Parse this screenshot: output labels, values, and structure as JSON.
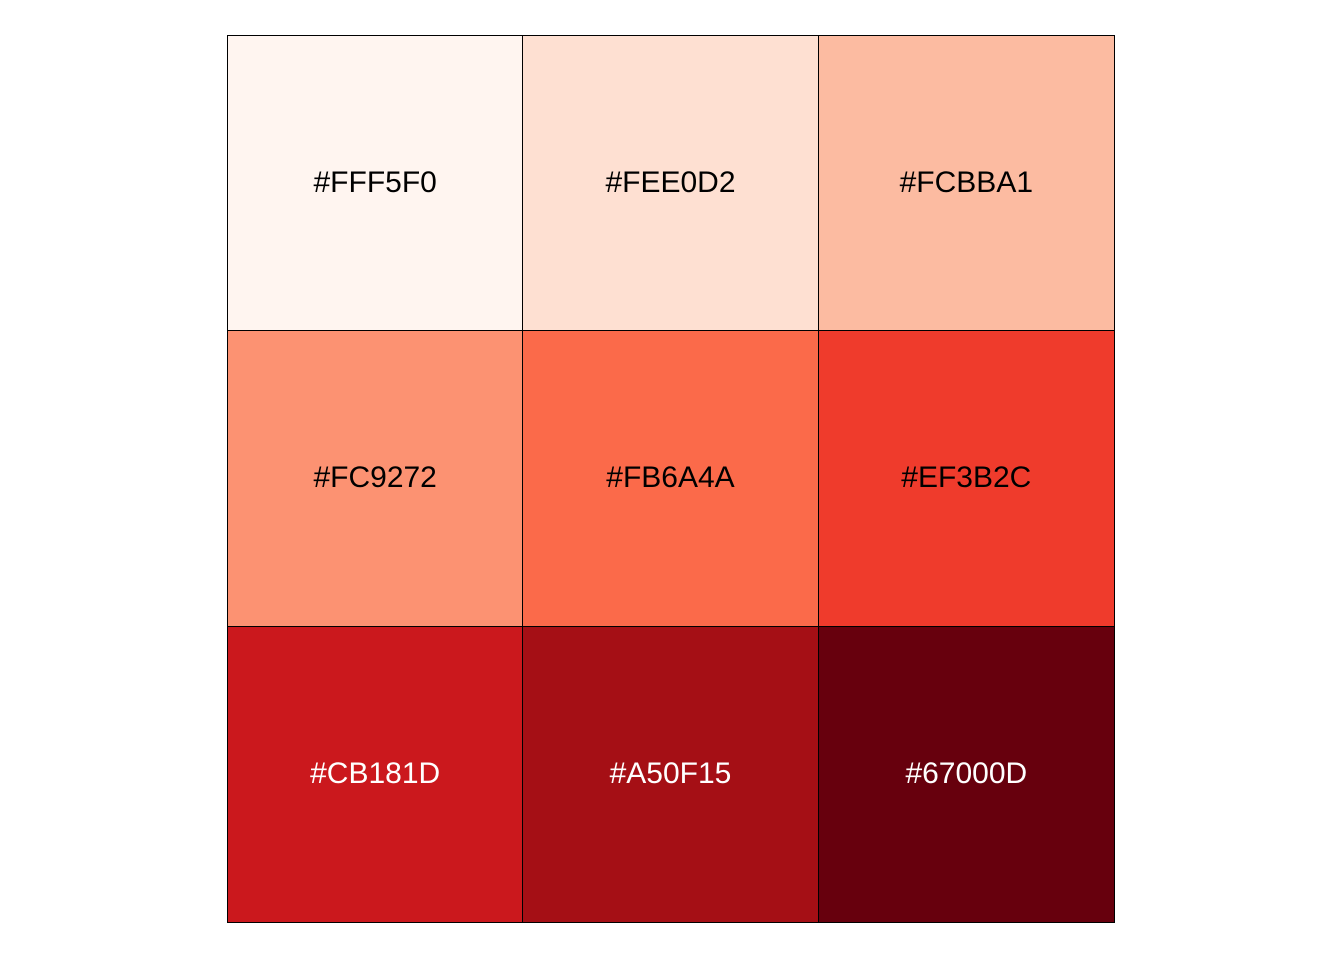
{
  "swatches": [
    {
      "label": "#FFF5F0",
      "color": "#FFF5F0",
      "text_color": "#000000"
    },
    {
      "label": "#FEE0D2",
      "color": "#FEE0D2",
      "text_color": "#000000"
    },
    {
      "label": "#FCBBA1",
      "color": "#FCBBA1",
      "text_color": "#000000"
    },
    {
      "label": "#FC9272",
      "color": "#FC9272",
      "text_color": "#000000"
    },
    {
      "label": "#FB6A4A",
      "color": "#FB6A4A",
      "text_color": "#000000"
    },
    {
      "label": "#EF3B2C",
      "color": "#EF3B2C",
      "text_color": "#000000"
    },
    {
      "label": "#CB181D",
      "color": "#CB181D",
      "text_color": "#FFFFFF"
    },
    {
      "label": "#A50F15",
      "color": "#A50F15",
      "text_color": "#FFFFFF"
    },
    {
      "label": "#67000D",
      "color": "#67000D",
      "text_color": "#FFFFFF"
    }
  ]
}
